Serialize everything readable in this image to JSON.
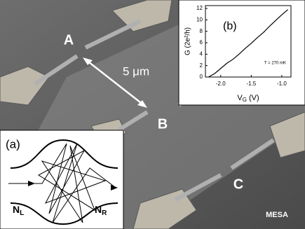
{
  "labels": {
    "a": "A",
    "b": "B",
    "c": "C",
    "scale": "5 μm",
    "mesa": "MESA"
  },
  "inset_a": {
    "tag": "(a)",
    "left": {
      "text": "N",
      "sub": "L"
    },
    "right": {
      "text": "N",
      "sub": "R"
    }
  },
  "chart_data": {
    "type": "line",
    "tag": "(b)",
    "y_label": "G (2e²/h)",
    "x_label": {
      "text": "V",
      "sub": "G",
      "unit": "(V)"
    },
    "annotation": "T = 270 mK",
    "x": [
      -2.2,
      -2.1,
      -2.0,
      -1.9,
      -1.8,
      -1.7,
      -1.6,
      -1.5,
      -1.4,
      -1.3,
      -1.2,
      -1.1,
      -1.0,
      -0.9
    ],
    "values": [
      0,
      0.6,
      1.5,
      2.4,
      3.1,
      4.0,
      5.0,
      5.9,
      6.9,
      7.8,
      8.9,
      9.9,
      10.9,
      11.8
    ],
    "color": "#000000",
    "xlim": [
      -2.25,
      -0.85
    ],
    "ylim": [
      0,
      12.5
    ],
    "xticks": [
      {
        "value": -2,
        "label": "-2.0"
      },
      -1.5,
      {
        "value": -1,
        "label": "-1.0"
      }
    ],
    "yticks": [
      0,
      2,
      4,
      6,
      8,
      10,
      12
    ]
  }
}
